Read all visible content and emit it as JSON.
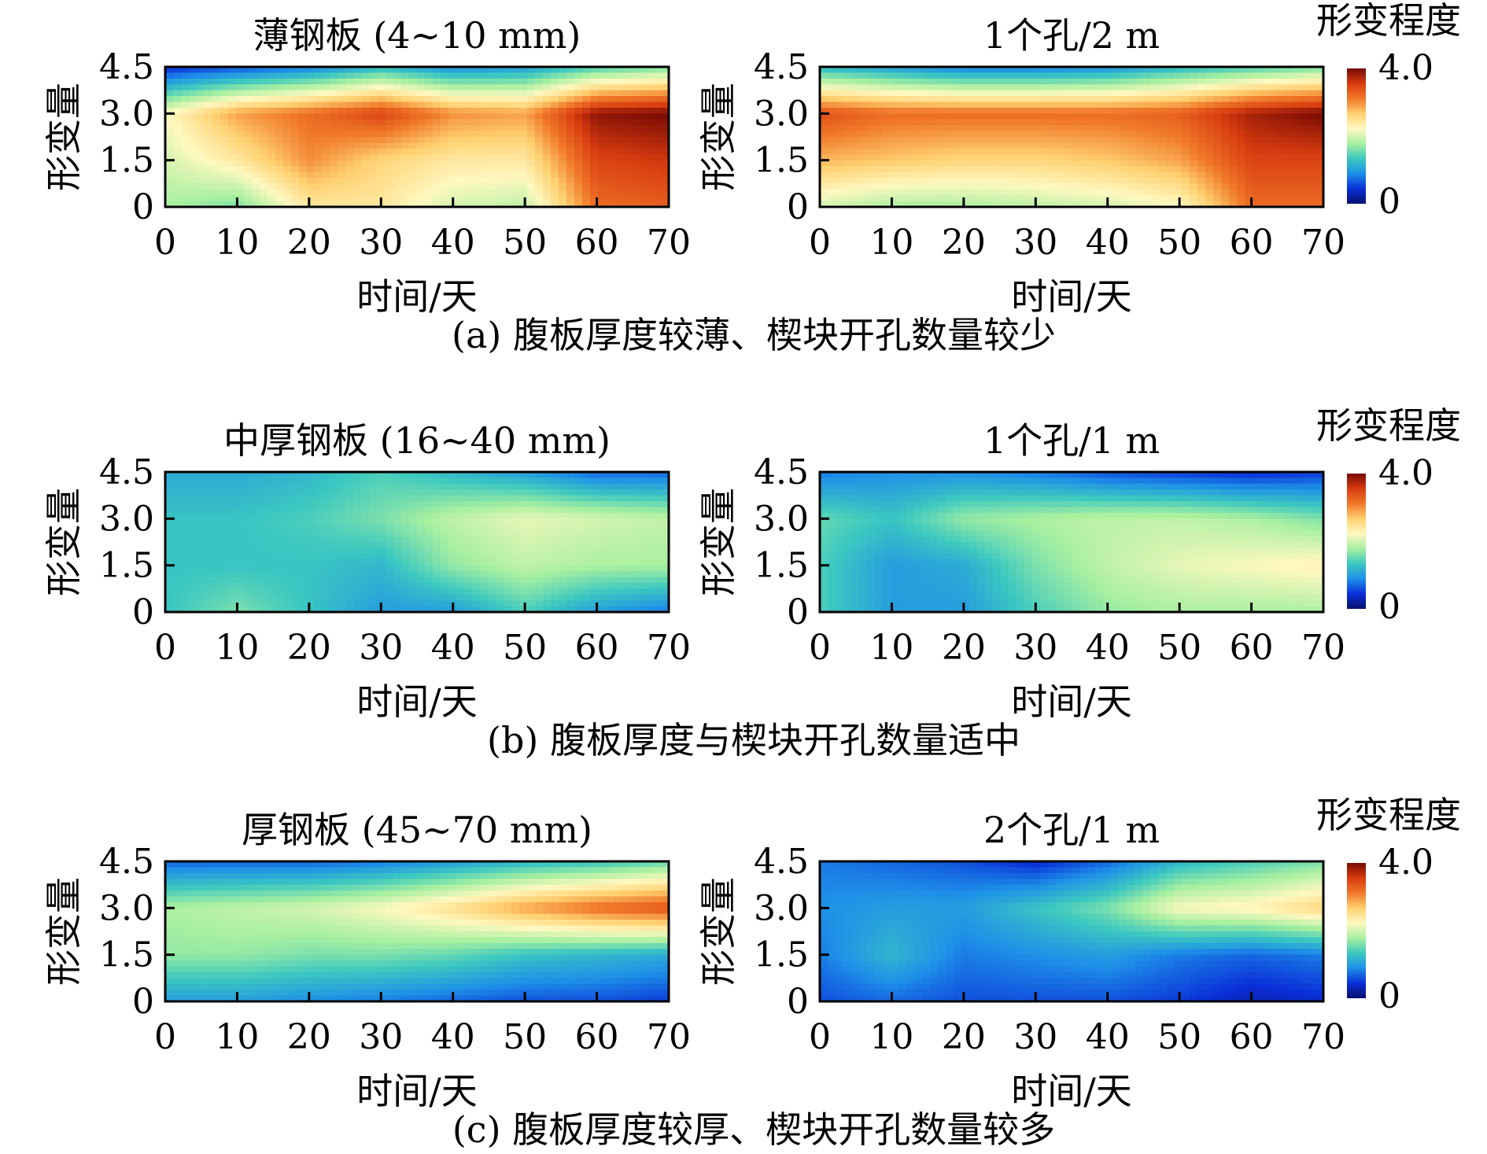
{
  "colorscale": {
    "title": "形变程度",
    "max_label": "4.0",
    "min_label": "0",
    "range": [
      0,
      4.0
    ],
    "colors": [
      "#08106e",
      "#0a2fd8",
      "#1e90e8",
      "#3cc8c0",
      "#a8f0a0",
      "#fff8c0",
      "#ffd070",
      "#f07828",
      "#d83c10",
      "#780a04"
    ]
  },
  "rows": [
    {
      "caption": "(a) 腹板厚度较薄、楔块开孔数量较少",
      "charts": [
        {
          "title": "薄钢板 (4~10 mm)",
          "xlabel": "时间/天",
          "ylabel": "形变量"
        },
        {
          "title": "1个孔/2 m",
          "xlabel": "时间/天",
          "ylabel": "形变量"
        }
      ]
    },
    {
      "caption": "(b) 腹板厚度与楔块开孔数量适中",
      "charts": [
        {
          "title": "中厚钢板 (16~40 mm)",
          "xlabel": "时间/天",
          "ylabel": "形变量"
        },
        {
          "title": "1个孔/1 m",
          "xlabel": "时间/天",
          "ylabel": "形变量"
        }
      ]
    },
    {
      "caption": "(c) 腹板厚度较厚、楔块开孔数量较多",
      "charts": [
        {
          "title": "厚钢板 (45~70 mm)",
          "xlabel": "时间/天",
          "ylabel": "形变量"
        },
        {
          "title": "2个孔/1 m",
          "xlabel": "时间/天",
          "ylabel": "形变量"
        }
      ]
    }
  ],
  "chart_data": [
    {
      "type": "heatmap",
      "title": "薄钢板 (4~10 mm)",
      "xlabel": "时间/天",
      "ylabel": "形变量",
      "xlim": [
        0,
        70
      ],
      "ylim": [
        0,
        4.5
      ],
      "xticks": [
        "0",
        "10",
        "20",
        "30",
        "40",
        "50",
        "60",
        "70"
      ],
      "yticks": [
        "0",
        "1.5",
        "3.0",
        "4.5"
      ],
      "x": [
        0,
        10,
        20,
        30,
        40,
        50,
        60,
        70
      ],
      "y": [
        0,
        1.5,
        3.0,
        4.5
      ],
      "z": [
        [
          1.8,
          1.6,
          2.4,
          2.4,
          2.0,
          1.9,
          3.2,
          3.3
        ],
        [
          2.0,
          2.4,
          3.0,
          2.6,
          2.4,
          2.4,
          3.5,
          3.6
        ],
        [
          2.2,
          2.9,
          3.2,
          3.5,
          3.0,
          2.9,
          3.9,
          4.0
        ],
        [
          0.4,
          0.6,
          0.8,
          1.2,
          0.9,
          1.0,
          1.4,
          1.6
        ]
      ]
    },
    {
      "type": "heatmap",
      "title": "1个孔/2 m",
      "xlabel": "时间/天",
      "ylabel": "形变量",
      "xlim": [
        0,
        70
      ],
      "ylim": [
        0,
        4.5
      ],
      "xticks": [
        "0",
        "10",
        "20",
        "30",
        "40",
        "50",
        "60",
        "70"
      ],
      "yticks": [
        "0",
        "1.5",
        "3.0",
        "4.5"
      ],
      "x": [
        0,
        10,
        20,
        30,
        40,
        50,
        60,
        70
      ],
      "y": [
        0,
        1.5,
        3.0,
        4.5
      ],
      "z": [
        [
          2.0,
          1.8,
          1.8,
          1.9,
          2.0,
          2.2,
          3.2,
          3.2
        ],
        [
          2.8,
          2.7,
          2.6,
          2.6,
          2.7,
          2.9,
          3.5,
          3.5
        ],
        [
          3.4,
          3.2,
          3.2,
          3.2,
          3.2,
          3.3,
          3.8,
          4.0
        ],
        [
          1.2,
          1.0,
          0.8,
          0.8,
          0.9,
          1.2,
          1.4,
          1.6
        ]
      ]
    },
    {
      "type": "heatmap",
      "title": "中厚钢板 (16~40 mm)",
      "xlabel": "时间/天",
      "ylabel": "形变量",
      "xlim": [
        0,
        70
      ],
      "ylim": [
        0,
        4.5
      ],
      "xticks": [
        "0",
        "10",
        "20",
        "30",
        "40",
        "50",
        "60",
        "70"
      ],
      "yticks": [
        "0",
        "1.5",
        "3.0",
        "4.5"
      ],
      "x": [
        0,
        10,
        20,
        30,
        40,
        50,
        60,
        70
      ],
      "y": [
        0,
        1.5,
        3.0,
        4.5
      ],
      "z": [
        [
          1.3,
          1.6,
          1.3,
          1.0,
          1.0,
          1.4,
          1.0,
          0.8
        ],
        [
          1.3,
          1.3,
          1.3,
          1.2,
          1.7,
          1.9,
          1.8,
          1.8
        ],
        [
          1.3,
          1.3,
          1.4,
          1.6,
          1.9,
          2.1,
          2.0,
          1.9
        ],
        [
          1.1,
          1.1,
          1.2,
          1.4,
          1.2,
          1.0,
          0.7,
          0.7
        ]
      ]
    },
    {
      "type": "heatmap",
      "title": "1个孔/1 m",
      "xlabel": "时间/天",
      "ylabel": "形变量",
      "xlim": [
        0,
        70
      ],
      "ylim": [
        0,
        4.5
      ],
      "xticks": [
        "0",
        "10",
        "20",
        "30",
        "40",
        "50",
        "60",
        "70"
      ],
      "yticks": [
        "0",
        "1.5",
        "3.0",
        "4.5"
      ],
      "x": [
        0,
        10,
        20,
        30,
        40,
        50,
        60,
        70
      ],
      "y": [
        0,
        1.5,
        3.0,
        4.5
      ],
      "z": [
        [
          1.4,
          1.0,
          1.0,
          1.4,
          1.7,
          1.8,
          1.8,
          1.8
        ],
        [
          1.4,
          1.0,
          1.1,
          1.6,
          1.9,
          2.1,
          2.2,
          2.3
        ],
        [
          1.5,
          1.3,
          1.7,
          1.8,
          1.9,
          1.9,
          1.8,
          1.6
        ],
        [
          0.8,
          0.9,
          0.9,
          0.8,
          0.6,
          0.5,
          0.4,
          0.5
        ]
      ]
    },
    {
      "type": "heatmap",
      "title": "厚钢板 (45~70 mm)",
      "xlabel": "时间/天",
      "ylabel": "形变量",
      "xlim": [
        0,
        70
      ],
      "ylim": [
        0,
        4.5
      ],
      "xticks": [
        "0",
        "10",
        "20",
        "30",
        "40",
        "50",
        "60",
        "70"
      ],
      "yticks": [
        "0",
        "1.5",
        "3.0",
        "4.5"
      ],
      "x": [
        0,
        10,
        20,
        30,
        40,
        50,
        60,
        70
      ],
      "y": [
        0,
        1.5,
        3.0,
        4.5
      ],
      "z": [
        [
          1.0,
          1.0,
          0.9,
          0.8,
          0.7,
          0.6,
          0.6,
          0.5
        ],
        [
          1.7,
          1.7,
          1.6,
          1.6,
          1.5,
          1.3,
          1.2,
          1.1
        ],
        [
          1.8,
          1.9,
          2.0,
          2.2,
          2.5,
          2.9,
          3.2,
          3.4
        ],
        [
          0.7,
          0.7,
          0.7,
          0.8,
          1.0,
          1.2,
          1.3,
          1.5
        ]
      ]
    },
    {
      "type": "heatmap",
      "title": "2个孔/1 m",
      "xlabel": "时间/天",
      "ylabel": "形变量",
      "xlim": [
        0,
        70
      ],
      "ylim": [
        0,
        4.5
      ],
      "xticks": [
        "0",
        "10",
        "20",
        "30",
        "40",
        "50",
        "60",
        "70"
      ],
      "yticks": [
        "0",
        "1.5",
        "3.0",
        "4.5"
      ],
      "x": [
        0,
        10,
        20,
        30,
        40,
        50,
        60,
        70
      ],
      "y": [
        0,
        1.5,
        3.0,
        4.5
      ],
      "z": [
        [
          0.6,
          0.7,
          0.6,
          0.6,
          0.6,
          0.5,
          0.3,
          0.4
        ],
        [
          0.8,
          1.2,
          0.8,
          0.9,
          1.0,
          0.8,
          0.7,
          0.8
        ],
        [
          0.9,
          1.0,
          1.0,
          1.3,
          1.6,
          2.2,
          2.3,
          2.6
        ],
        [
          0.8,
          0.7,
          0.6,
          0.4,
          0.7,
          1.2,
          1.4,
          1.6
        ]
      ]
    }
  ]
}
